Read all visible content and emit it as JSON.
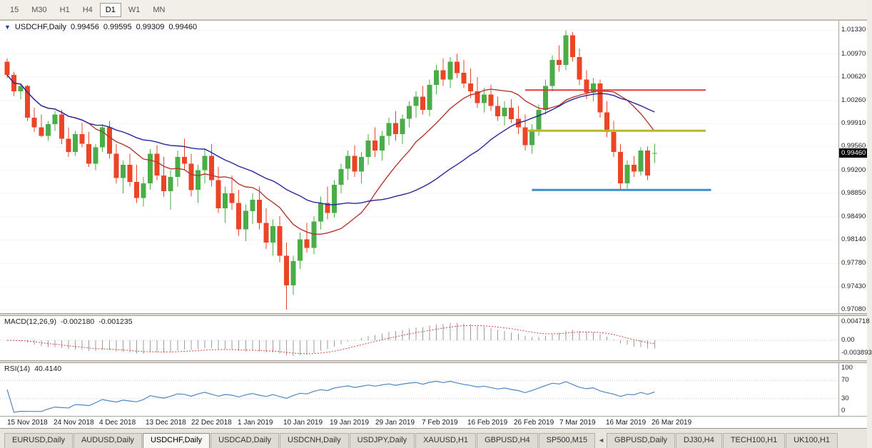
{
  "toolbar": {
    "timeframes": [
      {
        "label": "15",
        "active": false
      },
      {
        "label": "M30",
        "active": false
      },
      {
        "label": "H1",
        "active": false
      },
      {
        "label": "H4",
        "active": false
      },
      {
        "label": "D1",
        "active": true
      },
      {
        "label": "W1",
        "active": false
      },
      {
        "label": "MN",
        "active": false
      }
    ]
  },
  "chart_header": {
    "dropdown_icon": "▼",
    "symbol": "USDCHF,Daily",
    "open": "0.99456",
    "high": "0.99595",
    "low": "0.99309",
    "close": "0.99460"
  },
  "price_axis": {
    "labels": [
      "1.01330",
      "1.00970",
      "1.00620",
      "1.00260",
      "0.99910",
      "0.99560",
      "0.99200",
      "0.98850",
      "0.98490",
      "0.98140",
      "0.97780",
      "0.97430",
      "0.97080"
    ],
    "current": "0.99460"
  },
  "macd": {
    "label": "MACD(12,26,9)",
    "value_main": "-0.002180",
    "value_signal": "-0.001235",
    "axis_top": "0.004718",
    "axis_zero": "0.00",
    "axis_bottom": "-0.003893"
  },
  "rsi": {
    "label": "RSI(14)",
    "value": "40.4140",
    "axis_labels": [
      "100",
      "70",
      "30",
      "0"
    ],
    "levels": [
      70,
      30
    ]
  },
  "tabs": [
    {
      "label": "EURUSD,Daily",
      "active": false
    },
    {
      "label": "AUDUSD,Daily",
      "active": false
    },
    {
      "label": "USDCHF,Daily",
      "active": true
    },
    {
      "label": "USDCAD,Daily",
      "active": false
    },
    {
      "label": "USDCNH,Daily",
      "active": false
    },
    {
      "label": "USDJPY,Daily",
      "active": false
    },
    {
      "label": "XAUUSD,H1",
      "active": false
    },
    {
      "label": "GBPUSD,H4",
      "active": false
    },
    {
      "label": "SP500,M15",
      "active": false
    },
    {
      "icon": "scroll-left"
    },
    {
      "label": "GBPUSD,Daily",
      "active": false
    },
    {
      "label": "DJ30,H4",
      "active": false
    },
    {
      "label": "TECH100,H1",
      "active": false
    },
    {
      "label": "UK100,H1",
      "active": false
    }
  ],
  "chart_data": {
    "type": "candlestick",
    "symbol": "USDCHF",
    "timeframe": "Daily",
    "x_labels": [
      "15 Nov 2018",
      "24 Nov 2018",
      "4 Dec 2018",
      "13 Dec 2018",
      "22 Dec 2018",
      "1 Jan 2019",
      "10 Jan 2019",
      "19 Jan 2019",
      "29 Jan 2019",
      "7 Feb 2019",
      "16 Feb 2019",
      "26 Feb 2019",
      "7 Mar 2019",
      "16 Mar 2019",
      "26 Mar 2019"
    ],
    "ylim": [
      0.97025,
      1.01475
    ],
    "y_range": {
      "top": 1.01475,
      "bottom": 0.97025
    },
    "ohlc": [
      [
        1.0085,
        1.009,
        1.006,
        1.0065
      ],
      [
        1.0065,
        1.007,
        1.0033,
        1.004
      ],
      [
        1.004,
        1.0052,
        1.0028,
        1.0048
      ],
      [
        1.0048,
        1.005,
        0.9995,
        1.0
      ],
      [
        1.0,
        1.0015,
        0.9978,
        0.9985
      ],
      [
        0.9985,
        1.0005,
        0.997,
        0.9972
      ],
      [
        0.9972,
        0.9995,
        0.9965,
        0.999
      ],
      [
        0.999,
        1.001,
        0.998,
        1.0005
      ],
      [
        1.0005,
        1.0012,
        0.996,
        0.9968
      ],
      [
        0.9968,
        0.9985,
        0.994,
        0.9948
      ],
      [
        0.9948,
        0.998,
        0.9942,
        0.9975
      ],
      [
        0.9975,
        0.9992,
        0.9955,
        0.996
      ],
      [
        0.996,
        0.9978,
        0.9925,
        0.993
      ],
      [
        0.993,
        0.996,
        0.992,
        0.9955
      ],
      [
        0.9955,
        0.999,
        0.9948,
        0.9985
      ],
      [
        0.9985,
        0.9995,
        0.9938,
        0.9945
      ],
      [
        0.9945,
        0.996,
        0.99,
        0.9908
      ],
      [
        0.9908,
        0.9935,
        0.9885,
        0.9928
      ],
      [
        0.9928,
        0.9945,
        0.9895,
        0.9902
      ],
      [
        0.9902,
        0.9928,
        0.987,
        0.9878
      ],
      [
        0.9878,
        0.991,
        0.9865,
        0.99
      ],
      [
        0.99,
        0.9952,
        0.989,
        0.9945
      ],
      [
        0.9945,
        0.9958,
        0.9905,
        0.9912
      ],
      [
        0.9912,
        0.994,
        0.988,
        0.9888
      ],
      [
        0.9888,
        0.992,
        0.986,
        0.991
      ],
      [
        0.991,
        0.995,
        0.9895,
        0.994
      ],
      [
        0.994,
        0.9968,
        0.992,
        0.993
      ],
      [
        0.993,
        0.9945,
        0.988,
        0.989
      ],
      [
        0.989,
        0.9928,
        0.987,
        0.992
      ],
      [
        0.992,
        0.9952,
        0.99,
        0.9942
      ],
      [
        0.9942,
        0.996,
        0.9895,
        0.9905
      ],
      [
        0.9905,
        0.9925,
        0.9855,
        0.9862
      ],
      [
        0.9862,
        0.9895,
        0.984,
        0.9885
      ],
      [
        0.9885,
        0.9912,
        0.986,
        0.987
      ],
      [
        0.987,
        0.989,
        0.982,
        0.983
      ],
      [
        0.983,
        0.9868,
        0.9812,
        0.9858
      ],
      [
        0.9858,
        0.9885,
        0.9838,
        0.9875
      ],
      [
        0.9875,
        0.9895,
        0.983,
        0.984
      ],
      [
        0.984,
        0.9862,
        0.98,
        0.981
      ],
      [
        0.981,
        0.9845,
        0.979,
        0.9835
      ],
      [
        0.9835,
        0.985,
        0.978,
        0.979
      ],
      [
        0.979,
        0.981,
        0.9708,
        0.9745
      ],
      [
        0.9745,
        0.979,
        0.973,
        0.9782
      ],
      [
        0.9782,
        0.9825,
        0.977,
        0.9815
      ],
      [
        0.9815,
        0.984,
        0.9795,
        0.9802
      ],
      [
        0.9802,
        0.985,
        0.9792,
        0.9842
      ],
      [
        0.9842,
        0.988,
        0.983,
        0.987
      ],
      [
        0.987,
        0.9895,
        0.9845,
        0.9855
      ],
      [
        0.9855,
        0.9905,
        0.9848,
        0.9898
      ],
      [
        0.9898,
        0.993,
        0.9885,
        0.9922
      ],
      [
        0.9922,
        0.995,
        0.9905,
        0.9942
      ],
      [
        0.9942,
        0.9958,
        0.991,
        0.9918
      ],
      [
        0.9918,
        0.9948,
        0.99,
        0.994
      ],
      [
        0.994,
        0.9975,
        0.9928,
        0.9965
      ],
      [
        0.9965,
        0.9985,
        0.994,
        0.995
      ],
      [
        0.995,
        0.998,
        0.9935,
        0.9972
      ],
      [
        0.9972,
        1.0,
        0.9958,
        0.9992
      ],
      [
        0.9992,
        1.001,
        0.9965,
        0.9975
      ],
      [
        0.9975,
        1.0005,
        0.996,
        0.9998
      ],
      [
        0.9998,
        1.0025,
        0.9985,
        1.0018
      ],
      [
        1.0018,
        1.004,
        1.0,
        1.0032
      ],
      [
        1.0032,
        1.0048,
        1.0005,
        1.0012
      ],
      [
        1.0012,
        1.0058,
        1.0002,
        1.005
      ],
      [
        1.005,
        1.008,
        1.0035,
        1.0072
      ],
      [
        1.0072,
        1.009,
        1.0048,
        1.0058
      ],
      [
        1.0058,
        1.0092,
        1.0045,
        1.0085
      ],
      [
        1.0085,
        1.0097,
        1.006,
        1.0068
      ],
      [
        1.0068,
        1.0088,
        1.0045,
        1.0052
      ],
      [
        1.0052,
        1.0075,
        1.003,
        1.004
      ],
      [
        1.004,
        1.0062,
        1.0015,
        1.0022
      ],
      [
        1.0022,
        1.0045,
        1.0008,
        1.0035
      ],
      [
        1.0035,
        1.005,
        1.001,
        1.0018
      ],
      [
        1.0018,
        1.0032,
        0.9995,
        1.0002
      ],
      [
        1.0002,
        1.0025,
        0.9988,
        1.0015
      ],
      [
        1.0015,
        1.0028,
        0.9992,
        0.9998
      ],
      [
        0.9998,
        1.0018,
        0.9975,
        0.9985
      ],
      [
        0.9985,
        1.0005,
        0.995,
        0.9958
      ],
      [
        0.9958,
        0.999,
        0.9945,
        0.9982
      ],
      [
        0.9982,
        1.002,
        0.9972,
        1.0012
      ],
      [
        1.0012,
        1.0058,
        1.0005,
        1.0048
      ],
      [
        1.0048,
        1.0095,
        1.004,
        1.0088
      ],
      [
        1.0088,
        1.011,
        1.007,
        1.008
      ],
      [
        1.008,
        1.0133,
        1.0072,
        1.0125
      ],
      [
        1.0125,
        1.013,
        1.0085,
        1.0092
      ],
      [
        1.0092,
        1.0105,
        1.005,
        1.0058
      ],
      [
        1.0058,
        1.0072,
        1.0028,
        1.0038
      ],
      [
        1.0038,
        1.006,
        1.0025,
        1.0052
      ],
      [
        1.0052,
        1.0058,
        1.0,
        1.0008
      ],
      [
        1.0008,
        1.0025,
        0.997,
        0.9978
      ],
      [
        0.9978,
        0.9995,
        0.994,
        0.9948
      ],
      [
        0.9948,
        0.996,
        0.989,
        0.99
      ],
      [
        0.99,
        0.9935,
        0.9892,
        0.9928
      ],
      [
        0.9928,
        0.9942,
        0.991,
        0.9918
      ],
      [
        0.9918,
        0.9955,
        0.9912,
        0.995
      ],
      [
        0.995,
        0.9956,
        0.9905,
        0.9912
      ],
      [
        0.99456,
        0.99595,
        0.99309,
        0.9946
      ]
    ],
    "overlays": {
      "ma_fast": {
        "type": "sma",
        "period": 13,
        "color": "#b03a2e"
      },
      "ma_slow": {
        "type": "sma",
        "period": 30,
        "color": "#262699"
      }
    },
    "hlines": [
      {
        "price": 1.0042,
        "from": 76,
        "to": 102.5,
        "color": "#e53935",
        "width": 2
      },
      {
        "price": 0.998,
        "from": 76.3,
        "to": 102.5,
        "color": "#b6b82a",
        "width": 3
      },
      {
        "price": 0.989,
        "from": 77,
        "to": 103.3,
        "color": "#3e8ec8",
        "width": 3
      }
    ],
    "colors": {
      "up": "#4aad47",
      "down": "#ec4426",
      "macd_bar": "#9b9b9b",
      "macd_signal": "#cf4a41",
      "rsi_line": "#4f86c0",
      "grid": "#f3f3f3"
    },
    "indicators": {
      "macd": {
        "fast": 12,
        "slow": 26,
        "signal": 9
      },
      "rsi": {
        "period": 14
      }
    }
  }
}
